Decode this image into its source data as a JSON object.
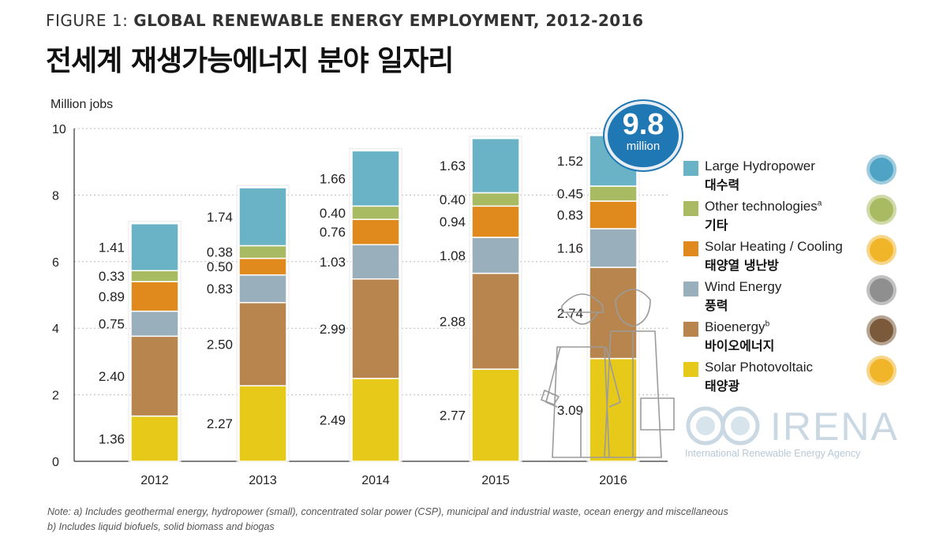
{
  "figure_label": {
    "number": "FIGURE 1: ",
    "title": "GLOBAL RENEWABLE ENERGY EMPLOYMENT, 2012-2016"
  },
  "title_kr": "전세계 재생가능에너지 분야 일자리",
  "total_badge": {
    "value": "9.8",
    "unit": "million"
  },
  "colors": {
    "Solar Photovoltaic": "#e6c919",
    "Bioenergy": "#b9854e",
    "Wind Energy": "#9aafbc",
    "Solar Heating / Cooling": "#e08a1e",
    "Other technologies": "#a9bb62",
    "Large Hydropower": "#6ab3c6"
  },
  "legend": [
    {
      "en": "Large Hydropower",
      "sup": "",
      "kr": "대수력",
      "color": "#6ab3c6",
      "icon": "water-drop-icon"
    },
    {
      "en": "Other technologies",
      "sup": "a",
      "kr": "기타",
      "color": "#a9bb62",
      "icon": "other-tech-icon"
    },
    {
      "en": "Solar Heating / Cooling",
      "sup": "",
      "kr": "태양열 냉난방",
      "color": "#e08a1e",
      "icon": "sun-icon"
    },
    {
      "en": "Wind Energy",
      "sup": "",
      "kr": "풍력",
      "color": "#9aafbc",
      "icon": "wind-icon"
    },
    {
      "en": "Bioenergy",
      "sup": "b",
      "kr": "바이오에너지",
      "color": "#b9854e",
      "icon": "leaf-icon"
    },
    {
      "en": "Solar Photovoltaic",
      "sup": "",
      "kr": "태양광",
      "color": "#e6c919",
      "icon": "sun-icon"
    }
  ],
  "logo": {
    "word": "IRENA",
    "sub": "International Renewable Energy Agency"
  },
  "notes": [
    "Note: a) Includes geothermal energy, hydropower (small), concentrated solar power (CSP), municipal and industrial waste, ocean energy and miscellaneous",
    "b) Includes liquid biofuels, solid biomass and biogas"
  ],
  "chart_data": {
    "type": "bar",
    "stacked": true,
    "ylabel": "Million jobs",
    "ylim": [
      0,
      10
    ],
    "yticks": [
      0,
      2,
      4,
      6,
      8,
      10
    ],
    "categories": [
      "2012",
      "2013",
      "2014",
      "2015",
      "2016"
    ],
    "series": [
      {
        "name": "Solar Photovoltaic",
        "values": [
          1.36,
          2.27,
          2.49,
          2.77,
          3.09
        ]
      },
      {
        "name": "Bioenergy",
        "values": [
          2.4,
          2.5,
          2.99,
          2.88,
          2.74
        ]
      },
      {
        "name": "Wind Energy",
        "values": [
          0.75,
          0.83,
          1.03,
          1.08,
          1.16
        ]
      },
      {
        "name": "Solar Heating / Cooling",
        "values": [
          0.89,
          0.5,
          0.76,
          0.94,
          0.83
        ]
      },
      {
        "name": "Other technologies",
        "values": [
          0.33,
          0.38,
          0.4,
          0.4,
          0.45
        ]
      },
      {
        "name": "Large Hydropower",
        "values": [
          1.41,
          1.74,
          1.66,
          1.63,
          1.52
        ]
      }
    ],
    "labels": [
      [
        "1.36",
        "2.27",
        "2.49",
        "2.77",
        "3.09"
      ],
      [
        "2.40",
        "2.50",
        "2.99",
        "2.88",
        "2.74"
      ],
      [
        "0.75",
        "0.83",
        "1.03",
        "1.08",
        "1.16"
      ],
      [
        "0.89",
        "0.50",
        "0.76",
        "0.94",
        "0.83"
      ],
      [
        "0.33",
        "0.38",
        "0.40",
        "0.40",
        "0.45"
      ],
      [
        "1.41",
        "1.74",
        "1.66",
        "1.63",
        "1.52"
      ]
    ],
    "legend_position": "right"
  }
}
